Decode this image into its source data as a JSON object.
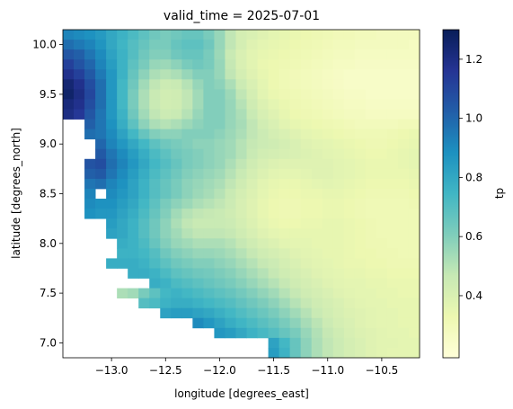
{
  "chart_data": {
    "type": "heatmap",
    "title": "valid_time = 2025-07-01",
    "xlabel": "longitude [degrees_east]",
    "ylabel": "latitude [degrees_north]",
    "colorbar_label": "tp",
    "colormap": "YlGnBu",
    "xlim": [
      -13.45,
      -10.15
    ],
    "ylim": [
      6.85,
      10.15
    ],
    "grid_step": 0.1,
    "x_ticks": [
      -13.0,
      -12.5,
      -12.0,
      -11.5,
      -11.0,
      -10.5
    ],
    "x_tick_labels": [
      "−13.0",
      "−12.5",
      "−12.0",
      "−11.5",
      "−11.0",
      "−10.5"
    ],
    "y_ticks": [
      7.0,
      7.5,
      8.0,
      8.5,
      9.0,
      9.5,
      10.0
    ],
    "y_tick_labels": [
      "7.0",
      "7.5",
      "8.0",
      "8.5",
      "9.0",
      "9.5",
      "10.0"
    ],
    "color_range": [
      0.19,
      1.3
    ],
    "colorbar_ticks": [
      0.4,
      0.6,
      0.8,
      1.0,
      1.2
    ],
    "colorbar_tick_labels": [
      "0.4",
      "0.6",
      "0.8",
      "1.0",
      "1.2"
    ],
    "x": [
      -13.4,
      -13.3,
      -13.2,
      -13.1,
      -13.0,
      -12.9,
      -12.8,
      -12.7,
      -12.6,
      -12.5,
      -12.4,
      -12.3,
      -12.2,
      -12.1,
      -12.0,
      -11.9,
      -11.8,
      -11.7,
      -11.6,
      -11.5,
      -11.4,
      -11.3,
      -11.2,
      -11.1,
      -11.0,
      -10.9,
      -10.8,
      -10.7,
      -10.6,
      -10.5,
      -10.4,
      -10.3,
      -10.2
    ],
    "y": [
      10.1,
      10.0,
      9.9,
      9.8,
      9.7,
      9.6,
      9.5,
      9.4,
      9.3,
      9.2,
      9.1,
      9.0,
      8.9,
      8.8,
      8.7,
      8.6,
      8.5,
      8.4,
      8.3,
      8.2,
      8.1,
      8.0,
      7.9,
      7.8,
      7.7,
      7.6,
      7.5,
      7.4,
      7.3,
      7.2,
      7.1,
      7.0,
      6.9
    ],
    "z": [
      [
        0.92,
        0.9,
        0.88,
        0.85,
        0.8,
        0.76,
        0.72,
        0.68,
        0.64,
        0.62,
        0.64,
        0.66,
        0.66,
        0.62,
        0.56,
        0.48,
        0.42,
        0.4,
        0.38,
        0.36,
        0.35,
        0.34,
        0.33,
        0.32,
        0.31,
        0.3,
        0.3,
        0.29,
        0.29,
        0.28,
        0.28,
        0.28,
        0.28
      ],
      [
        0.98,
        0.95,
        0.92,
        0.87,
        0.8,
        0.75,
        0.7,
        0.66,
        0.62,
        0.62,
        0.66,
        0.68,
        0.68,
        0.64,
        0.56,
        0.48,
        0.42,
        0.38,
        0.36,
        0.35,
        0.34,
        0.33,
        0.32,
        0.31,
        0.3,
        0.29,
        0.29,
        0.28,
        0.28,
        0.28,
        0.28,
        0.28,
        0.27
      ],
      [
        1.05,
        1.02,
        0.96,
        0.9,
        0.82,
        0.76,
        0.7,
        0.64,
        0.6,
        0.6,
        0.64,
        0.66,
        0.66,
        0.62,
        0.55,
        0.46,
        0.4,
        0.37,
        0.35,
        0.34,
        0.33,
        0.32,
        0.31,
        0.3,
        0.29,
        0.28,
        0.28,
        0.27,
        0.27,
        0.27,
        0.27,
        0.27,
        0.27
      ],
      [
        1.12,
        1.06,
        1.0,
        0.92,
        0.84,
        0.76,
        0.68,
        0.62,
        0.56,
        0.55,
        0.58,
        0.62,
        0.64,
        0.62,
        0.56,
        0.47,
        0.4,
        0.37,
        0.34,
        0.33,
        0.32,
        0.31,
        0.3,
        0.29,
        0.28,
        0.27,
        0.27,
        0.26,
        0.26,
        0.26,
        0.26,
        0.26,
        0.26
      ],
      [
        1.18,
        1.12,
        1.04,
        0.95,
        0.86,
        0.76,
        0.66,
        0.58,
        0.52,
        0.5,
        0.52,
        0.56,
        0.6,
        0.6,
        0.56,
        0.48,
        0.42,
        0.38,
        0.35,
        0.33,
        0.31,
        0.3,
        0.29,
        0.28,
        0.27,
        0.26,
        0.25,
        0.25,
        0.25,
        0.25,
        0.25,
        0.25,
        0.25
      ],
      [
        1.24,
        1.18,
        1.08,
        0.98,
        0.86,
        0.74,
        0.64,
        0.54,
        0.48,
        0.45,
        0.46,
        0.5,
        0.56,
        0.6,
        0.58,
        0.52,
        0.45,
        0.4,
        0.36,
        0.33,
        0.31,
        0.3,
        0.29,
        0.28,
        0.27,
        0.26,
        0.25,
        0.25,
        0.25,
        0.25,
        0.25,
        0.25,
        0.25
      ],
      [
        1.26,
        1.2,
        1.1,
        0.98,
        0.86,
        0.74,
        0.62,
        0.52,
        0.46,
        0.43,
        0.44,
        0.48,
        0.54,
        0.6,
        0.6,
        0.55,
        0.48,
        0.42,
        0.37,
        0.34,
        0.32,
        0.31,
        0.3,
        0.29,
        0.28,
        0.27,
        0.26,
        0.26,
        0.25,
        0.25,
        0.25,
        0.25,
        0.25
      ],
      [
        1.22,
        1.18,
        1.08,
        0.98,
        0.86,
        0.74,
        0.62,
        0.52,
        0.46,
        0.43,
        0.44,
        0.48,
        0.54,
        0.6,
        0.6,
        0.56,
        0.5,
        0.44,
        0.39,
        0.36,
        0.34,
        0.32,
        0.31,
        0.3,
        0.29,
        0.28,
        0.27,
        0.27,
        0.26,
        0.26,
        0.26,
        0.26,
        0.26
      ],
      [
        1.2,
        1.15,
        1.05,
        0.96,
        0.86,
        0.76,
        0.64,
        0.54,
        0.48,
        0.45,
        0.46,
        0.5,
        0.56,
        0.6,
        0.6,
        0.56,
        0.52,
        0.46,
        0.41,
        0.38,
        0.35,
        0.33,
        0.32,
        0.31,
        0.3,
        0.29,
        0.28,
        0.28,
        0.27,
        0.27,
        0.27,
        0.27,
        0.27
      ],
      [
        null,
        null,
        1.02,
        0.96,
        0.88,
        0.78,
        0.68,
        0.58,
        0.52,
        0.5,
        0.52,
        0.55,
        0.58,
        0.6,
        0.6,
        0.56,
        0.53,
        0.48,
        0.43,
        0.4,
        0.37,
        0.35,
        0.34,
        0.33,
        0.32,
        0.31,
        0.3,
        0.29,
        0.29,
        0.29,
        0.29,
        0.3,
        0.3
      ],
      [
        null,
        null,
        0.98,
        0.96,
        0.9,
        0.82,
        0.74,
        0.66,
        0.6,
        0.58,
        0.58,
        0.6,
        0.6,
        0.6,
        0.58,
        0.55,
        0.52,
        0.48,
        0.45,
        0.42,
        0.4,
        0.38,
        0.36,
        0.35,
        0.34,
        0.33,
        0.32,
        0.31,
        0.31,
        0.31,
        0.32,
        0.33,
        0.34
      ],
      [
        null,
        null,
        null,
        1.0,
        0.92,
        0.86,
        0.8,
        0.74,
        0.68,
        0.64,
        0.62,
        0.6,
        0.58,
        0.58,
        0.56,
        0.54,
        0.5,
        0.47,
        0.45,
        0.44,
        0.42,
        0.4,
        0.38,
        0.37,
        0.36,
        0.35,
        0.34,
        0.33,
        0.32,
        0.32,
        0.33,
        0.34,
        0.35
      ],
      [
        null,
        null,
        null,
        1.04,
        0.96,
        0.9,
        0.84,
        0.78,
        0.72,
        0.68,
        0.64,
        0.62,
        0.6,
        0.58,
        0.56,
        0.54,
        0.5,
        0.46,
        0.43,
        0.42,
        0.41,
        0.4,
        0.39,
        0.38,
        0.37,
        0.36,
        0.35,
        0.34,
        0.33,
        0.33,
        0.34,
        0.35,
        0.36
      ],
      [
        null,
        null,
        1.06,
        1.08,
        0.98,
        0.92,
        0.86,
        0.8,
        0.74,
        0.7,
        0.66,
        0.62,
        0.6,
        0.58,
        0.56,
        0.52,
        0.48,
        0.44,
        0.41,
        0.39,
        0.38,
        0.38,
        0.38,
        0.38,
        0.38,
        0.37,
        0.36,
        0.35,
        0.34,
        0.34,
        0.34,
        0.35,
        0.36
      ],
      [
        null,
        null,
        1.02,
        1.04,
        0.96,
        0.9,
        0.84,
        0.78,
        0.72,
        0.68,
        0.64,
        0.6,
        0.58,
        0.56,
        0.54,
        0.5,
        0.46,
        0.42,
        0.39,
        0.37,
        0.36,
        0.36,
        0.37,
        0.38,
        0.38,
        0.37,
        0.36,
        0.35,
        0.34,
        0.34,
        0.34,
        0.34,
        0.35
      ],
      [
        null,
        null,
        0.96,
        0.98,
        0.92,
        0.88,
        0.82,
        0.76,
        0.7,
        0.66,
        0.62,
        0.58,
        0.56,
        0.54,
        0.52,
        0.48,
        0.44,
        0.4,
        0.37,
        0.35,
        0.34,
        0.34,
        0.35,
        0.36,
        0.37,
        0.36,
        0.35,
        0.34,
        0.33,
        0.33,
        0.33,
        0.33,
        0.34
      ],
      [
        null,
        null,
        0.92,
        null,
        0.9,
        0.86,
        0.82,
        0.76,
        0.7,
        0.66,
        0.62,
        0.58,
        0.55,
        0.53,
        0.5,
        0.46,
        0.42,
        0.39,
        0.36,
        0.34,
        0.33,
        0.33,
        0.34,
        0.34,
        0.35,
        0.35,
        0.34,
        0.33,
        0.32,
        0.32,
        0.32,
        0.32,
        0.33
      ],
      [
        null,
        null,
        0.9,
        0.88,
        0.88,
        0.84,
        0.8,
        0.74,
        0.68,
        0.62,
        0.58,
        0.55,
        0.52,
        0.5,
        0.48,
        0.45,
        0.41,
        0.38,
        0.35,
        0.33,
        0.32,
        0.32,
        0.33,
        0.33,
        0.34,
        0.34,
        0.33,
        0.32,
        0.31,
        0.31,
        0.31,
        0.31,
        0.32
      ],
      [
        null,
        null,
        0.88,
        0.86,
        0.86,
        0.82,
        0.78,
        0.72,
        0.66,
        0.6,
        0.54,
        0.5,
        0.48,
        0.47,
        0.46,
        0.44,
        0.41,
        0.38,
        0.35,
        0.33,
        0.32,
        0.32,
        0.33,
        0.33,
        0.34,
        0.34,
        0.33,
        0.32,
        0.31,
        0.31,
        0.31,
        0.31,
        0.31
      ],
      [
        null,
        null,
        null,
        null,
        0.84,
        0.8,
        0.76,
        0.7,
        0.64,
        0.58,
        0.52,
        0.48,
        0.46,
        0.46,
        0.46,
        0.45,
        0.42,
        0.39,
        0.36,
        0.34,
        0.33,
        0.33,
        0.34,
        0.34,
        0.35,
        0.35,
        0.34,
        0.33,
        0.32,
        0.31,
        0.31,
        0.31,
        0.31
      ],
      [
        null,
        null,
        null,
        null,
        0.82,
        0.8,
        0.76,
        0.7,
        0.64,
        0.58,
        0.54,
        0.5,
        0.48,
        0.48,
        0.48,
        0.47,
        0.44,
        0.41,
        0.38,
        0.36,
        0.35,
        0.35,
        0.35,
        0.35,
        0.35,
        0.35,
        0.34,
        0.33,
        0.32,
        0.31,
        0.31,
        0.31,
        0.31
      ],
      [
        null,
        null,
        null,
        null,
        null,
        0.78,
        0.76,
        0.72,
        0.66,
        0.6,
        0.56,
        0.54,
        0.52,
        0.52,
        0.52,
        0.5,
        0.47,
        0.44,
        0.41,
        0.39,
        0.37,
        0.36,
        0.36,
        0.35,
        0.35,
        0.35,
        0.34,
        0.33,
        0.32,
        0.32,
        0.31,
        0.31,
        0.31
      ],
      [
        null,
        null,
        null,
        null,
        null,
        0.76,
        0.76,
        0.74,
        0.7,
        0.64,
        0.6,
        0.58,
        0.56,
        0.56,
        0.55,
        0.53,
        0.5,
        0.47,
        0.44,
        0.42,
        0.4,
        0.38,
        0.37,
        0.36,
        0.35,
        0.35,
        0.34,
        0.33,
        0.33,
        0.32,
        0.32,
        0.31,
        0.31
      ],
      [
        null,
        null,
        null,
        null,
        0.78,
        0.78,
        0.78,
        0.76,
        0.72,
        0.68,
        0.64,
        0.62,
        0.6,
        0.6,
        0.58,
        0.56,
        0.53,
        0.5,
        0.47,
        0.45,
        0.42,
        0.4,
        0.38,
        0.37,
        0.36,
        0.35,
        0.34,
        0.34,
        0.33,
        0.33,
        0.32,
        0.32,
        0.32
      ],
      [
        null,
        null,
        null,
        null,
        null,
        null,
        0.78,
        0.78,
        0.76,
        0.72,
        0.68,
        0.66,
        0.64,
        0.63,
        0.61,
        0.59,
        0.56,
        0.53,
        0.5,
        0.47,
        0.44,
        0.42,
        0.4,
        0.38,
        0.37,
        0.36,
        0.35,
        0.35,
        0.34,
        0.34,
        0.33,
        0.33,
        0.33
      ],
      [
        null,
        null,
        null,
        null,
        null,
        null,
        null,
        null,
        0.78,
        0.76,
        0.72,
        0.7,
        0.68,
        0.66,
        0.64,
        0.62,
        0.59,
        0.56,
        0.53,
        0.5,
        0.47,
        0.44,
        0.42,
        0.4,
        0.38,
        0.37,
        0.36,
        0.36,
        0.35,
        0.35,
        0.34,
        0.34,
        0.34
      ],
      [
        null,
        null,
        null,
        null,
        null,
        0.52,
        0.54,
        0.62,
        0.68,
        0.74,
        0.76,
        0.74,
        0.72,
        0.7,
        0.68,
        0.66,
        0.63,
        0.6,
        0.57,
        0.54,
        0.5,
        0.47,
        0.44,
        0.42,
        0.4,
        0.38,
        0.37,
        0.36,
        0.36,
        0.35,
        0.35,
        0.34,
        0.34
      ],
      [
        null,
        null,
        null,
        null,
        null,
        null,
        null,
        0.7,
        0.72,
        0.76,
        0.78,
        0.78,
        0.76,
        0.74,
        0.72,
        0.7,
        0.67,
        0.64,
        0.61,
        0.58,
        0.54,
        0.5,
        0.47,
        0.44,
        0.42,
        0.4,
        0.38,
        0.37,
        0.36,
        0.36,
        0.35,
        0.35,
        0.35
      ],
      [
        null,
        null,
        null,
        null,
        null,
        null,
        null,
        null,
        null,
        0.82,
        0.84,
        0.84,
        0.82,
        0.8,
        0.77,
        0.74,
        0.71,
        0.68,
        0.65,
        0.62,
        0.58,
        0.54,
        0.5,
        0.46,
        0.43,
        0.41,
        0.39,
        0.38,
        0.37,
        0.36,
        0.36,
        0.35,
        0.35
      ],
      [
        null,
        null,
        null,
        null,
        null,
        null,
        null,
        null,
        null,
        null,
        null,
        null,
        0.9,
        0.86,
        0.82,
        0.78,
        0.75,
        0.72,
        0.69,
        0.66,
        0.62,
        0.58,
        0.53,
        0.49,
        0.45,
        0.42,
        0.4,
        0.38,
        0.37,
        0.36,
        0.36,
        0.35,
        0.35
      ],
      [
        null,
        null,
        null,
        null,
        null,
        null,
        null,
        null,
        null,
        null,
        null,
        null,
        null,
        null,
        0.86,
        0.84,
        0.8,
        0.76,
        0.73,
        0.7,
        0.66,
        0.62,
        0.56,
        0.51,
        0.47,
        0.44,
        0.41,
        0.39,
        0.38,
        0.37,
        0.36,
        0.36,
        0.35
      ],
      [
        null,
        null,
        null,
        null,
        null,
        null,
        null,
        null,
        null,
        null,
        null,
        null,
        null,
        null,
        null,
        null,
        null,
        null,
        null,
        0.82,
        0.74,
        0.66,
        0.58,
        0.52,
        0.48,
        0.45,
        0.42,
        0.4,
        0.38,
        0.37,
        0.37,
        0.36,
        0.36
      ],
      [
        null,
        null,
        null,
        null,
        null,
        null,
        null,
        null,
        null,
        null,
        null,
        null,
        null,
        null,
        null,
        null,
        null,
        null,
        null,
        0.84,
        0.76,
        0.66,
        0.58,
        0.52,
        0.48,
        0.45,
        0.42,
        0.4,
        0.38,
        0.37,
        0.36,
        0.36,
        0.36
      ]
    ]
  }
}
